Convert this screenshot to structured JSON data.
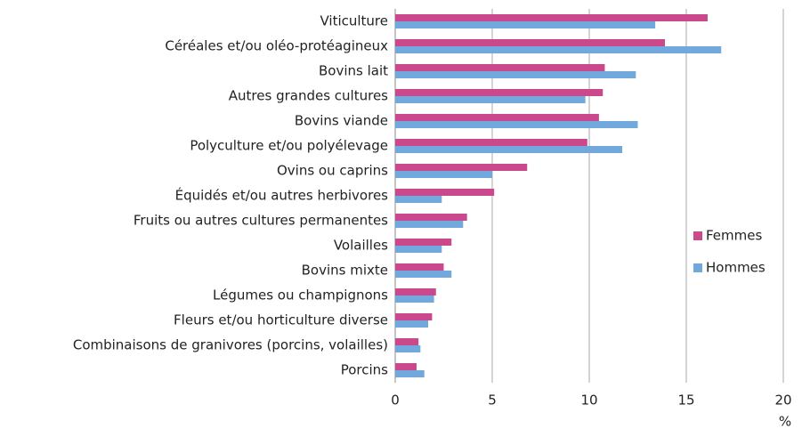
{
  "chart_data": {
    "type": "bar",
    "orientation": "horizontal",
    "categories": [
      "Viticulture",
      "Céréales et/ou oléo-protéagineux",
      "Bovins lait",
      "Autres grandes cultures",
      "Bovins viande",
      "Polyculture et/ou polyélevage",
      "Ovins ou caprins",
      "Équidés et/ou autres herbivores",
      "Fruits ou autres cultures permanentes",
      "Volailles",
      "Bovins mixte",
      "Légumes ou champignons",
      "Fleurs et/ou horticulture diverse",
      "Combinaisons de granivores (porcins, volailles)",
      "Porcins"
    ],
    "series": [
      {
        "name": "Femmes",
        "color": "#c9498c",
        "values": [
          16.1,
          13.9,
          10.8,
          10.7,
          10.5,
          9.9,
          6.8,
          5.1,
          3.7,
          2.9,
          2.5,
          2.1,
          1.9,
          1.2,
          1.1
        ]
      },
      {
        "name": "Hommes",
        "color": "#72a9dd",
        "values": [
          13.4,
          16.8,
          12.4,
          9.8,
          12.5,
          11.7,
          5.0,
          2.4,
          3.5,
          2.4,
          2.9,
          2.0,
          1.7,
          1.3,
          1.5
        ]
      }
    ],
    "xlabel": "%",
    "xlim": [
      0,
      20
    ],
    "xticks": [
      0,
      5,
      10,
      15,
      20
    ],
    "grid": true,
    "legend": "right"
  }
}
